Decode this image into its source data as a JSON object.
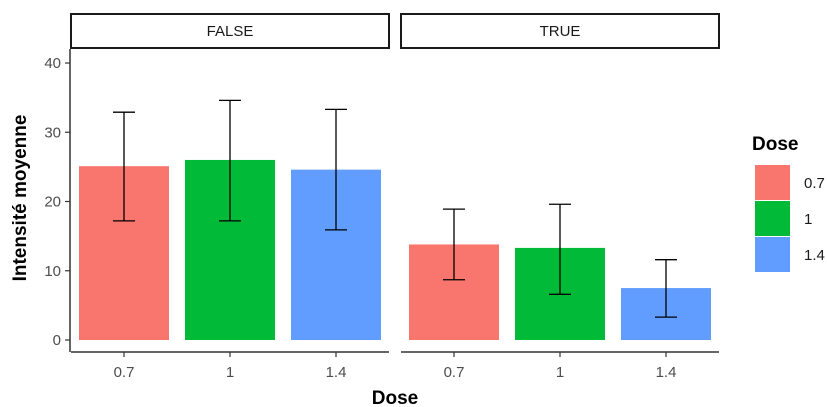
{
  "chart_data": {
    "type": "bar",
    "xlabel": "Dose",
    "ylabel": "Intensité moyenne",
    "ylim": [
      0,
      42
    ],
    "yticks": [
      0,
      10,
      20,
      30,
      40
    ],
    "categories": [
      "0.7",
      "1",
      "1.4"
    ],
    "grid": false,
    "facets": [
      {
        "label": "FALSE",
        "bars": [
          {
            "dose": "0.7",
            "value": 25.1,
            "err_low": 17.2,
            "err_high": 32.9
          },
          {
            "dose": "1",
            "value": 26.0,
            "err_low": 17.2,
            "err_high": 34.6
          },
          {
            "dose": "1.4",
            "value": 24.6,
            "err_low": 15.9,
            "err_high": 33.3
          }
        ]
      },
      {
        "label": "TRUE",
        "bars": [
          {
            "dose": "0.7",
            "value": 13.8,
            "err_low": 8.7,
            "err_high": 18.9
          },
          {
            "dose": "1",
            "value": 13.3,
            "err_low": 6.6,
            "err_high": 19.6
          },
          {
            "dose": "1.4",
            "value": 7.5,
            "err_low": 3.3,
            "err_high": 11.6
          }
        ]
      }
    ],
    "legend": {
      "title": "Dose",
      "placement": "right",
      "items": [
        {
          "label": "0.7",
          "color": "#F8766D"
        },
        {
          "label": "1",
          "color": "#00BA38"
        },
        {
          "label": "1.4",
          "color": "#619CFF"
        }
      ]
    }
  }
}
